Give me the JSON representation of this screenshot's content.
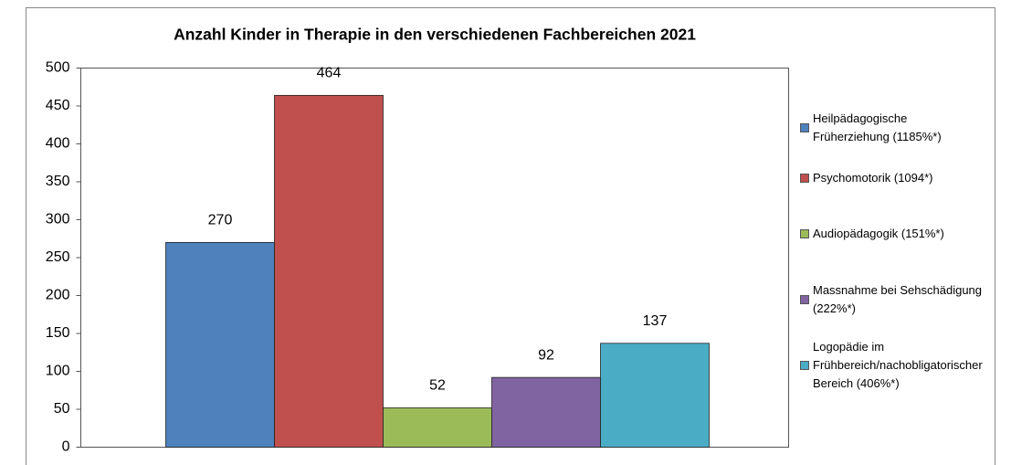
{
  "chart_data": {
    "type": "bar",
    "title": "Anzahl Kinder in Therapie in den verschiedenen Fachbereichen 2021",
    "categories": [
      null
    ],
    "series": [
      {
        "name": "Heilpädagogische Früherziehung (1185%*)",
        "color": "#4f81bd",
        "values": [
          270
        ]
      },
      {
        "name": "Psychomotorik (1094*)",
        "color": "#c0504d",
        "values": [
          464
        ]
      },
      {
        "name": "Audiopädagogik (151%*)",
        "color": "#9bbb59",
        "values": [
          52
        ]
      },
      {
        "name": "Massnahme bei Sehschädigung (222%*)",
        "color": "#8064a2",
        "values": [
          92
        ]
      },
      {
        "name": "Logopädie im Frühbereich/nachobligatorischer Bereich (406%*)",
        "color": "#4bacc6",
        "values": [
          137
        ]
      }
    ],
    "ylim": [
      0,
      500
    ],
    "yticks": [
      0,
      50,
      100,
      150,
      200,
      250,
      300,
      350,
      400,
      450,
      500
    ],
    "grid": false,
    "legend": "right"
  }
}
